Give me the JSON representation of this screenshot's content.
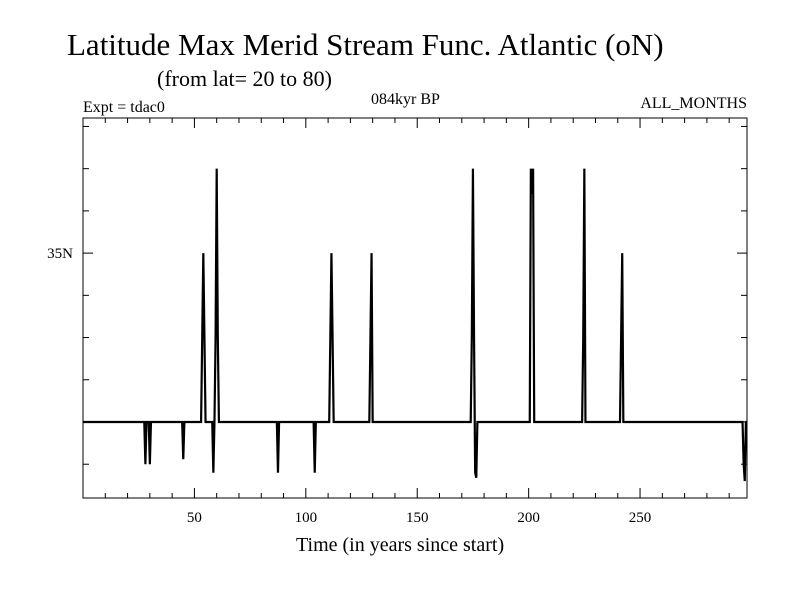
{
  "chart_data": {
    "type": "line",
    "title": "Latitude Max Merid Stream Func. Atlantic (oN)",
    "subtitle": "(from lat= 20 to 80)",
    "annotations": {
      "left": "Expt = tdac0",
      "center": "084kyr BP",
      "right": "ALL_MONTHS"
    },
    "xlabel": "Time (in years since start)",
    "ylabel": "",
    "xlim": [
      0,
      298
    ],
    "ylim": [
      20.5,
      43
    ],
    "x_ticks": [
      50,
      100,
      150,
      200,
      250
    ],
    "x_tick_labels": [
      "50",
      "100",
      "150",
      "200",
      "250"
    ],
    "y_ticks": [
      35
    ],
    "y_tick_labels": [
      "35N"
    ],
    "grid": false,
    "series": [
      {
        "color": "#000000",
        "x": [
          0,
          27.5,
          28,
          28.5,
          29,
          29.5,
          30,
          30.5,
          31,
          44.5,
          45,
          45.5,
          46,
          53,
          53.5,
          54,
          54.5,
          55,
          58,
          58.5,
          59,
          59.5,
          60,
          60.5,
          61,
          61.5,
          87,
          87.5,
          88,
          88.5,
          103.5,
          104,
          104.5,
          110.5,
          111,
          111.5,
          112,
          112.5,
          128.5,
          129,
          129.5,
          130,
          174,
          174.5,
          175,
          175.5,
          176,
          176.5,
          177,
          177.5,
          200.5,
          201,
          201.5,
          202,
          202.5,
          224,
          224.5,
          225,
          225.5,
          241,
          241.5,
          242,
          242.5,
          296,
          296.5,
          297,
          297.5,
          298
        ],
        "values": [
          25,
          25,
          22.5,
          25,
          25,
          25,
          22.5,
          25,
          25,
          25,
          22.8,
          25,
          25,
          25,
          30,
          35,
          30,
          25,
          25,
          22,
          25,
          30,
          40,
          30,
          25,
          25,
          25,
          22,
          25,
          25,
          25,
          22,
          25,
          25,
          30,
          35,
          30,
          25,
          25,
          30,
          35,
          25,
          25,
          30,
          40,
          30,
          22,
          21.7,
          25,
          25,
          25,
          40,
          38.5,
          40,
          25,
          25,
          30,
          40,
          25,
          25,
          30,
          35,
          25,
          25,
          22.5,
          21.5,
          25,
          25
        ]
      }
    ]
  }
}
